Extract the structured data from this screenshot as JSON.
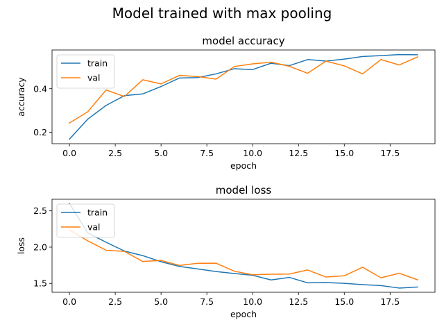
{
  "suptitle": "Model trained with max pooling",
  "colors": {
    "train": "#1f77b4",
    "val": "#ff7f0e"
  },
  "chart_data": [
    {
      "type": "line",
      "title": "model accuracy",
      "xlabel": "epoch",
      "ylabel": "accuracy",
      "xlim": [
        -0.95,
        19.95
      ],
      "ylim": [
        0.147,
        0.578
      ],
      "xticks": [
        0.0,
        2.5,
        5.0,
        7.5,
        10.0,
        12.5,
        15.0,
        17.5
      ],
      "xtick_labels": [
        "0.0",
        "2.5",
        "5.0",
        "7.5",
        "10.0",
        "12.5",
        "15.0",
        "17.5"
      ],
      "yticks": [
        0.2,
        0.4
      ],
      "ytick_labels": [
        "0.2",
        "0.4"
      ],
      "legend": "upper left",
      "x": [
        0,
        1,
        2,
        3,
        4,
        5,
        6,
        7,
        8,
        9,
        10,
        11,
        12,
        13,
        14,
        15,
        16,
        17,
        18,
        19
      ],
      "series": [
        {
          "name": "train",
          "values": [
            0.168,
            0.26,
            0.323,
            0.368,
            0.376,
            0.41,
            0.449,
            0.451,
            0.468,
            0.492,
            0.488,
            0.517,
            0.506,
            0.534,
            0.527,
            0.536,
            0.548,
            0.552,
            0.557,
            0.556
          ]
        },
        {
          "name": "val",
          "values": [
            0.242,
            0.294,
            0.394,
            0.364,
            0.441,
            0.422,
            0.461,
            0.456,
            0.444,
            0.502,
            0.514,
            0.522,
            0.503,
            0.471,
            0.527,
            0.505,
            0.468,
            0.534,
            0.509,
            0.546
          ]
        }
      ]
    },
    {
      "type": "line",
      "title": "model loss",
      "xlabel": "epoch",
      "ylabel": "loss",
      "xlim": [
        -0.95,
        19.95
      ],
      "ylim": [
        1.378,
        2.66
      ],
      "xticks": [
        0.0,
        2.5,
        5.0,
        7.5,
        10.0,
        12.5,
        15.0,
        17.5
      ],
      "xtick_labels": [
        "0.0",
        "2.5",
        "5.0",
        "7.5",
        "10.0",
        "12.5",
        "15.0",
        "17.5"
      ],
      "yticks": [
        1.5,
        2.0,
        2.5
      ],
      "ytick_labels": [
        "1.5",
        "2.0",
        "2.5"
      ],
      "legend": "upper left",
      "x": [
        0,
        1,
        2,
        3,
        4,
        5,
        6,
        7,
        8,
        9,
        10,
        11,
        12,
        13,
        14,
        15,
        16,
        17,
        18,
        19
      ],
      "series": [
        {
          "name": "train",
          "values": [
            2.6,
            2.197,
            2.067,
            1.946,
            1.883,
            1.799,
            1.734,
            1.7,
            1.664,
            1.636,
            1.612,
            1.548,
            1.583,
            1.508,
            1.512,
            1.501,
            1.483,
            1.47,
            1.436,
            1.45
          ]
        },
        {
          "name": "val",
          "values": [
            2.238,
            2.086,
            1.957,
            1.941,
            1.802,
            1.817,
            1.748,
            1.777,
            1.779,
            1.668,
            1.62,
            1.627,
            1.629,
            1.685,
            1.588,
            1.605,
            1.723,
            1.578,
            1.64,
            1.549
          ]
        }
      ]
    }
  ]
}
